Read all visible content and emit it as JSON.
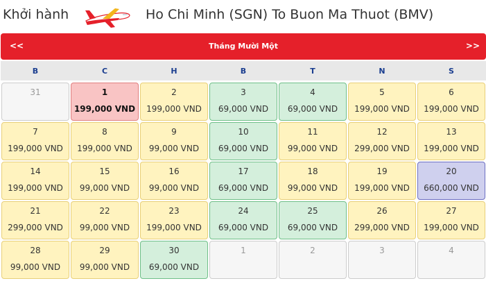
{
  "header": {
    "label": "Khởi hành",
    "route": "Ho Chi Minh (SGN) To Buon Ma Thuot (BMV)"
  },
  "calendar": {
    "prev": "<<",
    "next": ">>",
    "month": "Tháng Mười Một",
    "weekdays": [
      "B",
      "C",
      "H",
      "B",
      "T",
      "N",
      "S"
    ],
    "colors": {
      "header": "#e5202a",
      "yellow": "#fff3bf",
      "green": "#d4efdc",
      "red": "#f9c4c4",
      "purple": "#cfd0ee",
      "empty": "#f6f6f6"
    },
    "weeks": [
      [
        {
          "day": "31",
          "price": "",
          "style": "empty"
        },
        {
          "day": "1",
          "price": "199,000 VND",
          "style": "red"
        },
        {
          "day": "2",
          "price": "199,000 VND",
          "style": "yellow"
        },
        {
          "day": "3",
          "price": "69,000 VND",
          "style": "green"
        },
        {
          "day": "4",
          "price": "69,000 VND",
          "style": "green"
        },
        {
          "day": "5",
          "price": "199,000 VND",
          "style": "yellow"
        },
        {
          "day": "6",
          "price": "199,000 VND",
          "style": "yellow"
        }
      ],
      [
        {
          "day": "7",
          "price": "199,000 VND",
          "style": "yellow"
        },
        {
          "day": "8",
          "price": "199,000 VND",
          "style": "yellow"
        },
        {
          "day": "9",
          "price": "99,000 VND",
          "style": "yellow"
        },
        {
          "day": "10",
          "price": "69,000 VND",
          "style": "green"
        },
        {
          "day": "11",
          "price": "99,000 VND",
          "style": "yellow"
        },
        {
          "day": "12",
          "price": "299,000 VND",
          "style": "yellow"
        },
        {
          "day": "13",
          "price": "199,000 VND",
          "style": "yellow"
        }
      ],
      [
        {
          "day": "14",
          "price": "199,000 VND",
          "style": "yellow"
        },
        {
          "day": "15",
          "price": "99,000 VND",
          "style": "yellow"
        },
        {
          "day": "16",
          "price": "99,000 VND",
          "style": "yellow"
        },
        {
          "day": "17",
          "price": "69,000 VND",
          "style": "green"
        },
        {
          "day": "18",
          "price": "99,000 VND",
          "style": "yellow"
        },
        {
          "day": "19",
          "price": "199,000 VND",
          "style": "yellow"
        },
        {
          "day": "20",
          "price": "660,000 VND",
          "style": "purple"
        }
      ],
      [
        {
          "day": "21",
          "price": "299,000 VND",
          "style": "yellow"
        },
        {
          "day": "22",
          "price": "99,000 VND",
          "style": "yellow"
        },
        {
          "day": "23",
          "price": "199,000 VND",
          "style": "yellow"
        },
        {
          "day": "24",
          "price": "69,000 VND",
          "style": "green"
        },
        {
          "day": "25",
          "price": "69,000 VND",
          "style": "green"
        },
        {
          "day": "26",
          "price": "299,000 VND",
          "style": "yellow"
        },
        {
          "day": "27",
          "price": "199,000 VND",
          "style": "yellow"
        }
      ],
      [
        {
          "day": "28",
          "price": "99,000 VND",
          "style": "yellow"
        },
        {
          "day": "29",
          "price": "99,000 VND",
          "style": "yellow"
        },
        {
          "day": "30",
          "price": "69,000 VND",
          "style": "green"
        },
        {
          "day": "1",
          "price": "",
          "style": "empty"
        },
        {
          "day": "2",
          "price": "",
          "style": "empty"
        },
        {
          "day": "3",
          "price": "",
          "style": "empty"
        },
        {
          "day": "4",
          "price": "",
          "style": "empty"
        }
      ]
    ]
  }
}
